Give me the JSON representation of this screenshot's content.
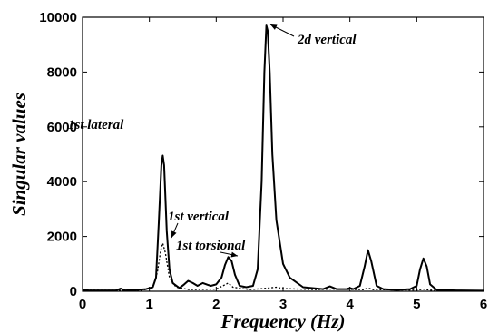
{
  "chart_data": {
    "type": "line",
    "title": "",
    "xlabel": "Frequency (Hz)",
    "ylabel": "Singular values",
    "xlim": [
      0,
      6
    ],
    "ylim": [
      0,
      10000
    ],
    "xticks": [
      0,
      1,
      2,
      3,
      4,
      5,
      6
    ],
    "yticks": [
      0,
      2000,
      4000,
      6000,
      8000,
      10000
    ],
    "grid": false,
    "series": [
      {
        "style": "solid",
        "x": [
          0.0,
          0.1,
          0.5,
          0.57,
          0.64,
          0.8,
          0.95,
          1.05,
          1.1,
          1.14,
          1.18,
          1.2,
          1.22,
          1.26,
          1.3,
          1.35,
          1.45,
          1.52,
          1.58,
          1.65,
          1.72,
          1.8,
          1.87,
          1.92,
          2.0,
          2.08,
          2.13,
          2.18,
          2.23,
          2.28,
          2.35,
          2.45,
          2.55,
          2.62,
          2.68,
          2.72,
          2.75,
          2.77,
          2.8,
          2.84,
          2.9,
          3.0,
          3.1,
          3.3,
          3.6,
          3.7,
          3.8,
          3.95,
          4.0,
          4.05,
          4.15,
          4.22,
          4.27,
          4.32,
          4.4,
          4.5,
          4.7,
          4.9,
          5.0,
          5.05,
          5.1,
          5.15,
          5.2,
          5.3,
          5.6,
          6.0
        ],
        "y": [
          50,
          30,
          30,
          100,
          30,
          50,
          80,
          150,
          500,
          2500,
          4600,
          4950,
          4600,
          2200,
          800,
          300,
          120,
          250,
          380,
          300,
          200,
          300,
          240,
          200,
          250,
          500,
          950,
          1250,
          1100,
          600,
          200,
          150,
          200,
          800,
          4000,
          8000,
          9700,
          9500,
          8000,
          5000,
          2600,
          1000,
          500,
          150,
          80,
          180,
          80,
          80,
          120,
          80,
          200,
          900,
          1500,
          1100,
          200,
          80,
          50,
          80,
          200,
          800,
          1200,
          900,
          250,
          50,
          30,
          20
        ]
      },
      {
        "style": "dotted",
        "x": [
          0.0,
          0.5,
          0.9,
          1.05,
          1.12,
          1.17,
          1.2,
          1.24,
          1.3,
          1.4,
          1.6,
          2.0,
          2.1,
          2.18,
          2.25,
          2.5,
          2.7,
          2.9,
          3.0,
          3.5,
          3.7,
          4.2,
          4.27,
          4.35,
          5.0,
          5.1,
          5.2,
          5.5,
          6.0
        ],
        "y": [
          40,
          30,
          40,
          150,
          700,
          1500,
          1750,
          1400,
          500,
          150,
          60,
          80,
          200,
          300,
          150,
          60,
          100,
          150,
          100,
          60,
          80,
          60,
          120,
          60,
          40,
          80,
          40,
          30,
          20
        ]
      }
    ],
    "annotations": [
      {
        "text": "1st lateral",
        "x": 1.2,
        "y": 4950
      },
      {
        "text": "1st vertical",
        "x": 1.2,
        "y": 1750
      },
      {
        "text": "1st torsional",
        "x": 2.18,
        "y": 1250
      },
      {
        "text": "2d vertical",
        "x": 2.77,
        "y": 9650
      }
    ]
  }
}
